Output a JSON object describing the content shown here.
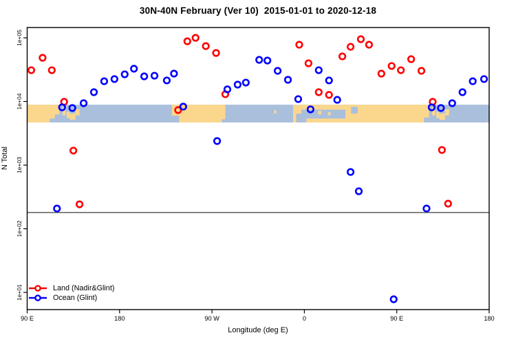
{
  "chart_data": {
    "type": "scatter",
    "title": "30N-40N February (Ver 10)  2015-01-01 to 2020-12-18",
    "xlabel": "Longitude (deg E)",
    "ylabel": "N Total",
    "x_axis": {
      "lim": [
        90,
        540
      ],
      "ticks": [
        {
          "lon": 90,
          "label": "90 E"
        },
        {
          "lon": 180,
          "label": "180"
        },
        {
          "lon": 270,
          "label": "90 W"
        },
        {
          "lon": 360,
          "label": "0"
        },
        {
          "lon": 450,
          "label": "90 E"
        },
        {
          "lon": 540,
          "label": "180"
        }
      ]
    },
    "y_axis": {
      "scale": "log",
      "ticks": [
        {
          "value": 10,
          "label": "1e+01"
        },
        {
          "value": 100,
          "label": "1e+02"
        },
        {
          "value": 1000,
          "label": "1e+03"
        },
        {
          "value": 10000,
          "label": "1e+04"
        },
        {
          "value": 100000,
          "label": "1e+05"
        }
      ]
    },
    "grid": "off",
    "reference_line": {
      "value": 180,
      "color": "#3a3a3a"
    },
    "map_band": {
      "value_top": 8900,
      "value_bottom": 4680,
      "ocean_color": "#aabfdc",
      "land_color": "#fbd78d",
      "segments": [
        {
          "t": "land",
          "lon": [
            90,
            121.5
          ],
          "v": [
            0,
            1
          ]
        },
        {
          "t": "ocean",
          "lon": [
            112,
            121.5
          ],
          "v": [
            0.78,
            1
          ]
        },
        {
          "t": "ocean",
          "lon": [
            117,
            121.5
          ],
          "v": [
            0.55,
            1
          ]
        },
        {
          "t": "land",
          "lon": [
            124.5,
            127.5
          ],
          "v": [
            0.15,
            0.6
          ]
        },
        {
          "t": "land",
          "lon": [
            128.5,
            131.5
          ],
          "v": [
            0.4,
            0.75
          ]
        },
        {
          "t": "land",
          "lon": [
            131.5,
            137
          ],
          "v": [
            0.5,
            0.85
          ]
        },
        {
          "t": "land",
          "lon": [
            137,
            141
          ],
          "v": [
            0.25,
            0.6
          ]
        },
        {
          "t": "land",
          "lon": [
            231,
            283
          ],
          "v": [
            0,
            1
          ]
        },
        {
          "t": "ocean",
          "lon": [
            231,
            238
          ],
          "v": [
            0.62,
            1
          ]
        },
        {
          "t": "ocean",
          "lon": [
            279.5,
            283
          ],
          "v": [
            0.82,
            1
          ]
        },
        {
          "t": "land",
          "lon": [
            330.5,
            332.5
          ],
          "v": [
            0.3,
            0.5
          ]
        },
        {
          "t": "land",
          "lon": [
            349,
            481.5
          ],
          "v": [
            0,
            1
          ]
        },
        {
          "t": "ocean",
          "lon": [
            352,
            362
          ],
          "v": [
            0.5,
            1
          ]
        },
        {
          "t": "ocean",
          "lon": [
            357,
            400
          ],
          "v": [
            0.28,
            0.78
          ]
        },
        {
          "t": "land",
          "lon": [
            373.5,
            376.5
          ],
          "v": [
            0.35,
            0.55
          ]
        },
        {
          "t": "land",
          "lon": [
            383,
            385.5
          ],
          "v": [
            0.42,
            0.6
          ]
        },
        {
          "t": "ocean",
          "lon": [
            405.5,
            412
          ],
          "v": [
            0.12,
            0.5
          ]
        },
        {
          "t": "ocean",
          "lon": [
            476.5,
            481.5
          ],
          "v": [
            0.72,
            1
          ]
        },
        {
          "t": "land",
          "lon": [
            484.5,
            487.5
          ],
          "v": [
            0.15,
            0.6
          ]
        },
        {
          "t": "land",
          "lon": [
            488.5,
            491.5
          ],
          "v": [
            0.4,
            0.75
          ]
        },
        {
          "t": "land",
          "lon": [
            491.5,
            497
          ],
          "v": [
            0.5,
            0.85
          ]
        },
        {
          "t": "land",
          "lon": [
            497,
            501
          ],
          "v": [
            0.25,
            0.6
          ]
        }
      ]
    },
    "legend": [
      {
        "label": "Land (Nadir&Glint)",
        "color": "#ff0000"
      },
      {
        "label": "Ocean (Glint)",
        "color": "#0000ff"
      }
    ],
    "series": [
      {
        "name": "Land (Nadir&Glint)",
        "color": "#ff0000",
        "points": [
          [
            94,
            31000
          ],
          [
            105,
            48600
          ],
          [
            114,
            31000
          ],
          [
            126,
            9880
          ],
          [
            135,
            1690
          ],
          [
            141,
            242
          ],
          [
            237,
            7320
          ],
          [
            246,
            88300
          ],
          [
            254,
            100000
          ],
          [
            264,
            74200
          ],
          [
            274,
            57800
          ],
          [
            283,
            13000
          ],
          [
            355,
            78000
          ],
          [
            364,
            39800
          ],
          [
            374,
            14000
          ],
          [
            384,
            12700
          ],
          [
            397,
            51100
          ],
          [
            405,
            72300
          ],
          [
            415,
            95100
          ],
          [
            423,
            78000
          ],
          [
            435,
            27400
          ],
          [
            445,
            36100
          ],
          [
            454,
            31000
          ],
          [
            464,
            46200
          ],
          [
            474,
            30300
          ],
          [
            485,
            9880
          ],
          [
            494,
            1730
          ],
          [
            500,
            248
          ]
        ]
      },
      {
        "name": "Ocean (Glint)",
        "color": "#0000ff",
        "points": [
          [
            119,
            208
          ],
          [
            124,
            8090
          ],
          [
            134,
            7890
          ],
          [
            145,
            9400
          ],
          [
            155,
            14000
          ],
          [
            165,
            20800
          ],
          [
            175,
            22500
          ],
          [
            185,
            26700
          ],
          [
            194,
            32700
          ],
          [
            204,
            24800
          ],
          [
            214,
            25400
          ],
          [
            226,
            21400
          ],
          [
            233,
            27400
          ],
          [
            242,
            8300
          ],
          [
            275,
            2390
          ],
          [
            285,
            15500
          ],
          [
            295,
            18400
          ],
          [
            303,
            19800
          ],
          [
            316,
            45100
          ],
          [
            324,
            44000
          ],
          [
            334,
            30300
          ],
          [
            344,
            21900
          ],
          [
            354,
            10900
          ],
          [
            366,
            7510
          ],
          [
            374,
            31000
          ],
          [
            384,
            21400
          ],
          [
            392,
            10600
          ],
          [
            405,
            780
          ],
          [
            413,
            388
          ],
          [
            447,
            7.8
          ],
          [
            479,
            208
          ],
          [
            484,
            8090
          ],
          [
            493,
            7890
          ],
          [
            504,
            9400
          ],
          [
            514,
            14000
          ],
          [
            524,
            20800
          ],
          [
            535,
            22500
          ]
        ]
      }
    ]
  }
}
